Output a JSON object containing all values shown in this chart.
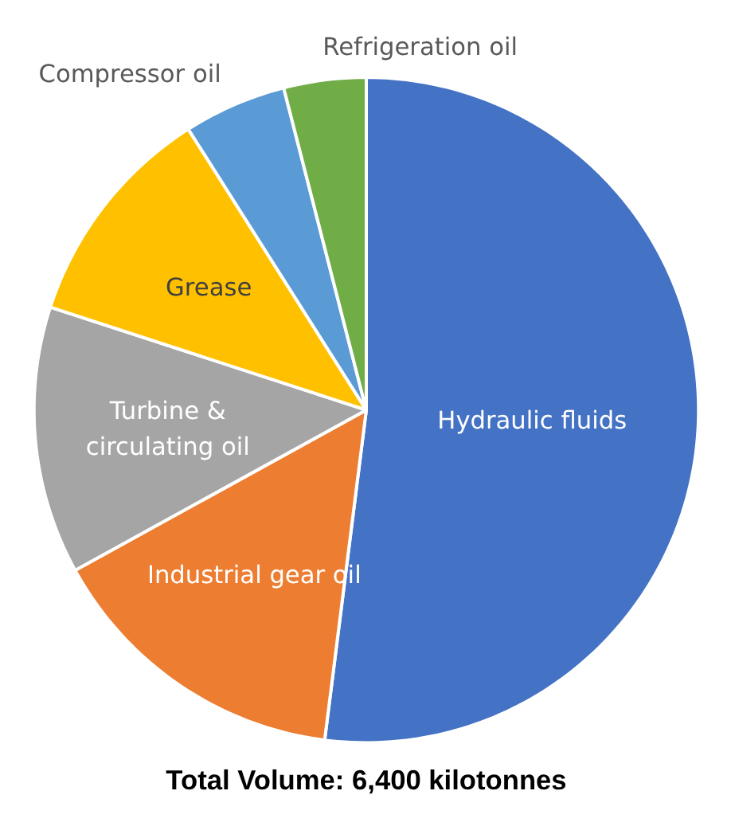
{
  "chart_data": {
    "type": "pie",
    "categories": [
      "Hydraulic fluids",
      "Industrial gear oil",
      "Turbine &\ncirculating oil",
      "Grease",
      "Compressor oil",
      "Refrigeration oil"
    ],
    "values": [
      52,
      15,
      13,
      11,
      5,
      4
    ],
    "colors": [
      "#4472c4",
      "#ed7d31",
      "#a5a5a5",
      "#ffc000",
      "#5b9bd5",
      "#70ad47"
    ],
    "annotations": [
      "Total Volume: 6,400 kilotonnes"
    ]
  }
}
